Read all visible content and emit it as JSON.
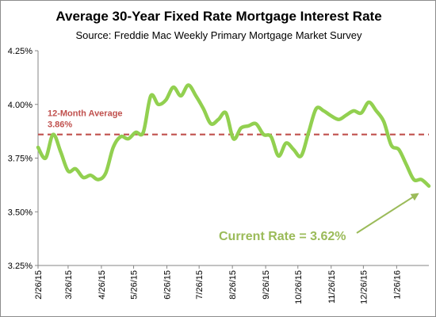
{
  "chart_data": {
    "type": "line",
    "title": "Average 30-Year Fixed Rate Mortgage Interest Rate",
    "subtitle": "Source: Freddie Mac Weekly Primary Mortgage Market Survey",
    "xlabel": "",
    "ylabel": "",
    "ylim": [
      3.25,
      4.25
    ],
    "yticks": [
      3.25,
      3.5,
      3.75,
      4.0,
      4.25
    ],
    "ytick_labels": [
      "3.25%",
      "3.50%",
      "3.75%",
      "4.00%",
      "4.25%"
    ],
    "xlim": [
      "2015-02-26",
      "2016-02-25"
    ],
    "xticks": [
      "2015-02-26",
      "2015-03-26",
      "2015-04-26",
      "2015-05-26",
      "2015-06-26",
      "2015-07-26",
      "2015-08-26",
      "2015-09-26",
      "2015-10-26",
      "2015-11-26",
      "2015-12-26",
      "2016-01-26"
    ],
    "xtick_labels": [
      "2/26/15",
      "3/26/15",
      "4/26/15",
      "5/26/15",
      "6/26/15",
      "7/26/15",
      "8/26/15",
      "9/26/15",
      "10/26/15",
      "11/26/15",
      "12/26/15",
      "1/26/16"
    ],
    "grid": false,
    "series": [
      {
        "color": "#92d050",
        "x": [
          "2015-02-26",
          "2015-03-05",
          "2015-03-12",
          "2015-03-19",
          "2015-03-26",
          "2015-04-02",
          "2015-04-09",
          "2015-04-16",
          "2015-04-23",
          "2015-04-30",
          "2015-05-07",
          "2015-05-14",
          "2015-05-21",
          "2015-05-28",
          "2015-06-04",
          "2015-06-11",
          "2015-06-18",
          "2015-06-25",
          "2015-07-02",
          "2015-07-09",
          "2015-07-16",
          "2015-07-23",
          "2015-07-30",
          "2015-08-06",
          "2015-08-13",
          "2015-08-20",
          "2015-08-27",
          "2015-09-03",
          "2015-09-10",
          "2015-09-17",
          "2015-09-24",
          "2015-10-01",
          "2015-10-08",
          "2015-10-15",
          "2015-10-22",
          "2015-10-29",
          "2015-11-05",
          "2015-11-12",
          "2015-11-19",
          "2015-11-25",
          "2015-12-03",
          "2015-12-10",
          "2015-12-17",
          "2015-12-24",
          "2015-12-31",
          "2016-01-07",
          "2016-01-14",
          "2016-01-21",
          "2016-01-28",
          "2016-02-04",
          "2016-02-11",
          "2016-02-18",
          "2016-02-25"
        ],
        "values": [
          3.8,
          3.75,
          3.86,
          3.78,
          3.69,
          3.7,
          3.66,
          3.67,
          3.65,
          3.68,
          3.8,
          3.85,
          3.84,
          3.87,
          3.87,
          4.04,
          4.0,
          4.02,
          4.08,
          4.04,
          4.09,
          4.04,
          3.98,
          3.91,
          3.93,
          3.96,
          3.84,
          3.89,
          3.9,
          3.91,
          3.86,
          3.85,
          3.76,
          3.82,
          3.79,
          3.76,
          3.87,
          3.98,
          3.97,
          3.95,
          3.93,
          3.95,
          3.97,
          3.96,
          4.01,
          3.97,
          3.92,
          3.81,
          3.79,
          3.72,
          3.65,
          3.65,
          3.62
        ]
      }
    ],
    "average_line": {
      "value": 3.86,
      "label_line1": "12-Month Average",
      "label_line2": "3.86%",
      "color": "#c0504d"
    },
    "annotation": {
      "text": "Current Rate = 3.62%",
      "color": "#9bbb59"
    }
  }
}
